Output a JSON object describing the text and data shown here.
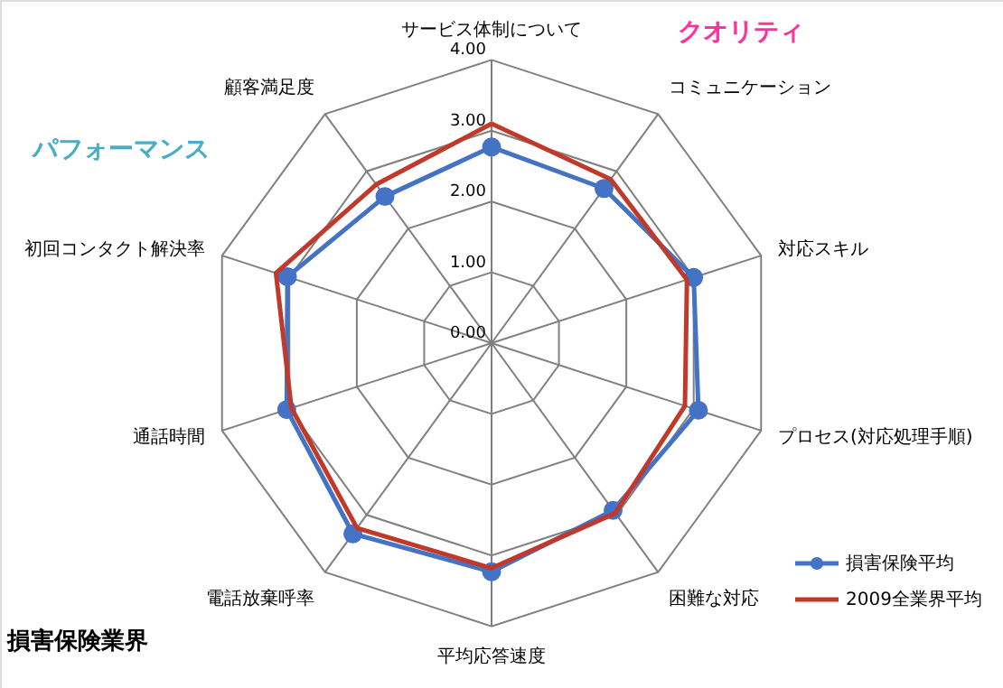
{
  "chart_data": {
    "type": "radar",
    "categories": [
      "サービス体制について",
      "コミュニケーション",
      "対応スキル",
      "プロセス(対応処理手順)",
      "困難な対応",
      "平均応答速度",
      "電話放棄呼率",
      "通話時間",
      "初回コンタクト解決率",
      "顧客満足度"
    ],
    "series": [
      {
        "name": "損害保険平均",
        "color": "#4472c4",
        "marker": "circle",
        "values": [
          2.77,
          2.7,
          3.0,
          3.07,
          2.92,
          3.23,
          3.33,
          3.04,
          3.03,
          2.56
        ]
      },
      {
        "name": "2009全業界平均",
        "color": "#c0392b",
        "marker": "none",
        "values": [
          3.1,
          2.86,
          2.9,
          2.87,
          2.97,
          3.18,
          3.23,
          2.97,
          3.2,
          2.77
        ]
      }
    ],
    "ylim": [
      0,
      4
    ],
    "yticks": [
      {
        "value": 0,
        "label": "0.00"
      },
      {
        "value": 1,
        "label": "1.00"
      },
      {
        "value": 2,
        "label": "2.00"
      },
      {
        "value": 3,
        "label": "3.00"
      },
      {
        "value": 4,
        "label": "4.00"
      }
    ],
    "grid": true,
    "legend": "bottom right",
    "annotations": [
      "クオリティ",
      "パフォーマンス",
      "損害保険業界"
    ]
  }
}
